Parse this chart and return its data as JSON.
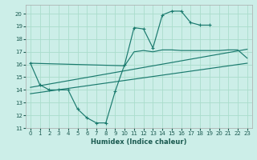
{
  "title": "",
  "xlabel": "Humidex (Indice chaleur)",
  "bg_color": "#cceee8",
  "grid_color": "#aaddcc",
  "line_color": "#1a7a6e",
  "xlim": [
    -0.5,
    23.5
  ],
  "ylim": [
    11,
    20.7
  ],
  "xtick_vals": [
    0,
    1,
    2,
    3,
    4,
    5,
    6,
    7,
    8,
    9,
    10,
    11,
    12,
    13,
    14,
    15,
    16,
    17,
    18,
    19,
    20,
    21,
    22,
    23
  ],
  "xtick_labels": [
    "0",
    "1",
    "2",
    "3",
    "4",
    "5",
    "6",
    "7",
    "8",
    "9",
    "10",
    "11",
    "12",
    "13",
    "14",
    "15",
    "16",
    "17",
    "18",
    "19",
    "20",
    "21",
    "22",
    "23"
  ],
  "ytick_vals": [
    11,
    12,
    13,
    14,
    15,
    16,
    17,
    18,
    19,
    20
  ],
  "ytick_labels": [
    "11",
    "12",
    "13",
    "14",
    "15",
    "16",
    "17",
    "18",
    "19",
    "20"
  ],
  "curve1_x": [
    0,
    1,
    2,
    3,
    4,
    5,
    6,
    7,
    8,
    9,
    10,
    11,
    12,
    13,
    14,
    15,
    16,
    17,
    18,
    19
  ],
  "curve1_y": [
    16.1,
    14.4,
    14.0,
    14.0,
    14.0,
    12.5,
    11.8,
    11.4,
    11.4,
    13.9,
    16.0,
    18.9,
    18.8,
    17.3,
    19.9,
    20.2,
    20.2,
    19.3,
    19.1,
    19.1
  ],
  "line1_x": [
    0,
    23
  ],
  "line1_y": [
    14.2,
    17.2
  ],
  "line2_x": [
    0,
    23
  ],
  "line2_y": [
    13.7,
    16.1
  ],
  "curve2_x": [
    0,
    10,
    11,
    12,
    13,
    14,
    15,
    16,
    17,
    18,
    19,
    20,
    21,
    22,
    23
  ],
  "curve2_y": [
    16.1,
    15.9,
    17.0,
    17.1,
    17.0,
    17.15,
    17.15,
    17.1,
    17.1,
    17.1,
    17.1,
    17.1,
    17.15,
    17.15,
    16.5
  ]
}
